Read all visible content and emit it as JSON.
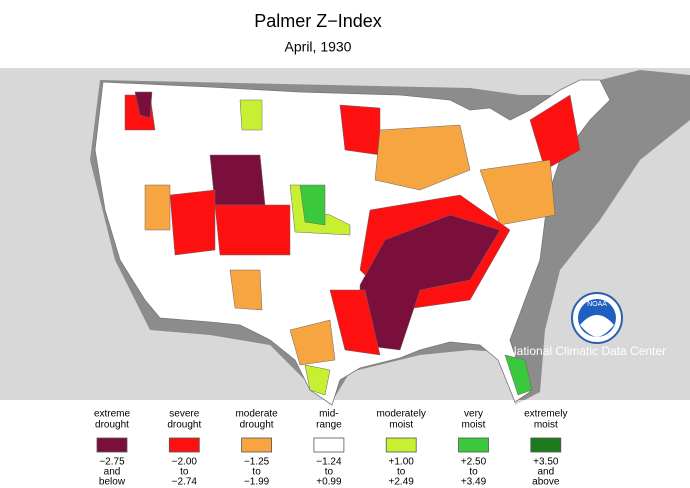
{
  "header": {
    "title": "Palmer Z−Index",
    "subtitle": "April, 1930"
  },
  "credit": "National Climatic Data Center",
  "logo": "NOAA",
  "legend": [
    {
      "label": [
        "extreme",
        "drought"
      ],
      "range": [
        "−2.75",
        "and",
        "below"
      ],
      "color": "#7b0f3c"
    },
    {
      "label": [
        "severe",
        "drought"
      ],
      "range": [
        "−2.00",
        "to",
        "−2.74"
      ],
      "color": "#ff1010"
    },
    {
      "label": [
        "moderate",
        "drought"
      ],
      "range": [
        "−1.25",
        "to",
        "−1.99"
      ],
      "color": "#f7a540"
    },
    {
      "label": [
        "mid-",
        "range"
      ],
      "range": [
        "−1.24",
        "to",
        "+0.99"
      ],
      "color": "#ffffff"
    },
    {
      "label": [
        "moderately",
        "moist"
      ],
      "range": [
        "+1.00",
        "to",
        "+2.49"
      ],
      "color": "#c8f032"
    },
    {
      "label": [
        "very",
        "moist"
      ],
      "range": [
        "+2.50",
        "to",
        "+3.49"
      ],
      "color": "#3cc83c"
    },
    {
      "label": [
        "extremely",
        "moist"
      ],
      "range": [
        "+3.50",
        "and",
        "above"
      ],
      "color": "#1e7a1e"
    }
  ]
}
